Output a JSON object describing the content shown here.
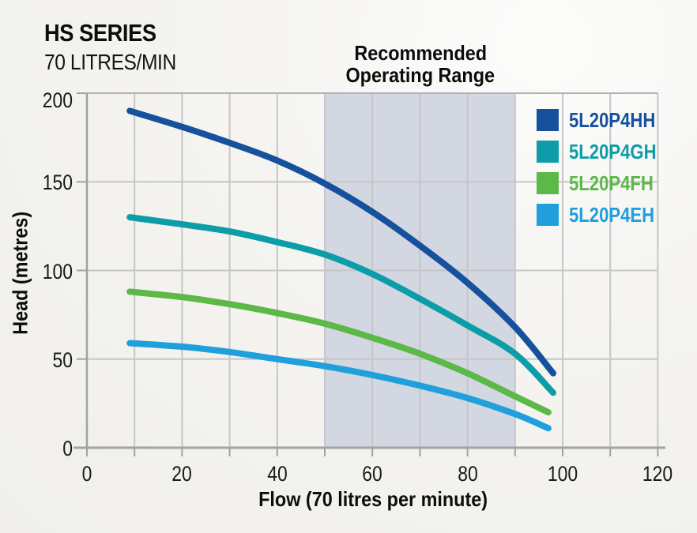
{
  "header": {
    "title": "HS SERIES",
    "subtitle": "70 LITRES/MIN"
  },
  "range_label": {
    "line1": "Recommended",
    "line2": "Operating Range"
  },
  "colors": {
    "background": "#f4f3f0",
    "band": "#d3d7e2",
    "gridline": "#c6c6c6",
    "frame": "#b2b2b2",
    "axis": "#a2a2a2",
    "text": "#141414"
  },
  "chart_data": {
    "type": "line",
    "title": "HS SERIES 70 LITRES/MIN",
    "xlabel": "Flow (70 litres per minute)",
    "ylabel": "Head (metres)",
    "xlim": [
      0,
      120
    ],
    "ylim": [
      0,
      200
    ],
    "x_tick_labels": [
      0,
      20,
      40,
      60,
      80,
      100,
      120
    ],
    "x_minor_tick_step": 10,
    "y_tick_labels": [
      0,
      50,
      100,
      150,
      200
    ],
    "grid": {
      "vertical_step": 10,
      "horizontal_step": 50,
      "shown": true
    },
    "legend_position": "top-right-inside",
    "recommended_operating_range": {
      "x_from": 50,
      "x_to": 90
    },
    "series": [
      {
        "name": "5L20P4HH",
        "color": "#15519d",
        "points": [
          [
            9,
            190
          ],
          [
            20,
            181
          ],
          [
            30,
            172
          ],
          [
            40,
            162
          ],
          [
            50,
            149
          ],
          [
            60,
            133
          ],
          [
            70,
            114
          ],
          [
            80,
            93
          ],
          [
            90,
            68
          ],
          [
            98,
            42
          ]
        ]
      },
      {
        "name": "5L20P4GH",
        "color": "#0d9da8",
        "points": [
          [
            9,
            130
          ],
          [
            20,
            126
          ],
          [
            30,
            122
          ],
          [
            40,
            116
          ],
          [
            50,
            109
          ],
          [
            60,
            98
          ],
          [
            70,
            84
          ],
          [
            80,
            69
          ],
          [
            90,
            53
          ],
          [
            98,
            31
          ]
        ]
      },
      {
        "name": "5L20P4FH",
        "color": "#5cb847",
        "points": [
          [
            9,
            88
          ],
          [
            20,
            85
          ],
          [
            30,
            81
          ],
          [
            40,
            76
          ],
          [
            50,
            70
          ],
          [
            60,
            62
          ],
          [
            70,
            53
          ],
          [
            80,
            42
          ],
          [
            90,
            29
          ],
          [
            97,
            20
          ]
        ]
      },
      {
        "name": "5L20P4EH",
        "color": "#1f9fdc",
        "points": [
          [
            9,
            59
          ],
          [
            20,
            57
          ],
          [
            30,
            54
          ],
          [
            40,
            50
          ],
          [
            50,
            46
          ],
          [
            60,
            41
          ],
          [
            70,
            35
          ],
          [
            80,
            28
          ],
          [
            90,
            19
          ],
          [
            97,
            11
          ]
        ]
      }
    ]
  }
}
